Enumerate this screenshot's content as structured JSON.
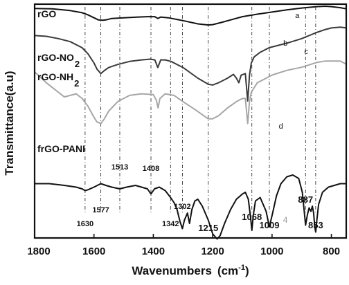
{
  "chart_data": {
    "type": "line",
    "xlabel": "Wavenumbers",
    "xlabel_unit": "(cm",
    "xlabel_unit_sup": "-1",
    "xlabel_unit_close": ")",
    "ylabel": "Transmittance(a.u)",
    "xlim": [
      1800,
      750
    ],
    "x_reversed": true,
    "x_ticks": [
      1800,
      1600,
      1400,
      1200,
      1000,
      800
    ],
    "y_ticks_shown": false,
    "grid": false,
    "legend": "none",
    "series": [
      {
        "name": "rGO",
        "curve_letter": "a",
        "color": "#111111",
        "x": [
          1800,
          1740,
          1680,
          1640,
          1620,
          1600,
          1585,
          1570,
          1560,
          1540,
          1500,
          1450,
          1420,
          1395,
          1385,
          1375,
          1350,
          1300,
          1250,
          1215,
          1200,
          1170,
          1140,
          1100,
          1050,
          1000,
          950,
          900,
          850,
          820,
          800,
          770,
          750
        ],
        "y": [
          0.96,
          0.955,
          0.93,
          0.9,
          0.87,
          0.83,
          0.8,
          0.795,
          0.8,
          0.82,
          0.83,
          0.84,
          0.845,
          0.845,
          0.82,
          0.84,
          0.83,
          0.79,
          0.745,
          0.73,
          0.735,
          0.765,
          0.8,
          0.845,
          0.88,
          0.91,
          0.94,
          0.965,
          0.985,
          0.99,
          0.985,
          0.97,
          0.955
        ]
      },
      {
        "name": "rGO-NO",
        "name_subscript": "2",
        "curve_letter": "b",
        "color": "#3a3a3a",
        "x": [
          1800,
          1760,
          1720,
          1680,
          1640,
          1620,
          1600,
          1590,
          1577,
          1565,
          1550,
          1520,
          1480,
          1440,
          1410,
          1395,
          1385,
          1375,
          1360,
          1340,
          1300,
          1250,
          1215,
          1200,
          1180,
          1150,
          1130,
          1120,
          1112,
          1104,
          1090,
          1082,
          1076,
          1070,
          1060,
          1040,
          1010,
          1000,
          950,
          900,
          850,
          820,
          800,
          770,
          750
        ],
        "y": [
          0.88,
          0.875,
          0.86,
          0.84,
          0.8,
          0.76,
          0.7,
          0.66,
          0.63,
          0.65,
          0.67,
          0.69,
          0.71,
          0.72,
          0.725,
          0.72,
          0.67,
          0.72,
          0.72,
          0.71,
          0.67,
          0.6,
          0.56,
          0.555,
          0.57,
          0.6,
          0.625,
          0.6,
          0.57,
          0.62,
          0.63,
          0.45,
          0.62,
          0.7,
          0.74,
          0.77,
          0.8,
          0.805,
          0.83,
          0.86,
          0.9,
          0.92,
          0.93,
          0.935,
          0.93
        ]
      },
      {
        "name": "rGO-NH",
        "name_subscript": "2",
        "curve_letter": "c",
        "color": "#a6a6a6",
        "x": [
          1800,
          1760,
          1720,
          1700,
          1680,
          1660,
          1640,
          1620,
          1600,
          1590,
          1577,
          1565,
          1550,
          1520,
          1480,
          1440,
          1400,
          1390,
          1384,
          1378,
          1360,
          1330,
          1300,
          1260,
          1230,
          1215,
          1200,
          1180,
          1150,
          1120,
          1100,
          1090,
          1082,
          1076,
          1070,
          1050,
          1020,
          1000,
          950,
          900,
          850,
          820,
          800,
          770,
          750
        ],
        "y": [
          0.77,
          0.7,
          0.64,
          0.61,
          0.62,
          0.63,
          0.6,
          0.55,
          0.48,
          0.45,
          0.44,
          0.47,
          0.52,
          0.58,
          0.62,
          0.63,
          0.625,
          0.59,
          0.54,
          0.6,
          0.63,
          0.62,
          0.58,
          0.53,
          0.49,
          0.47,
          0.47,
          0.49,
          0.54,
          0.58,
          0.6,
          0.6,
          0.44,
          0.58,
          0.64,
          0.7,
          0.73,
          0.75,
          0.78,
          0.8,
          0.83,
          0.84,
          0.84,
          0.84,
          0.82
        ]
      },
      {
        "name": "frGO-PANI",
        "curve_letter": "d",
        "color": "#111111",
        "x": [
          1800,
          1750,
          1700,
          1660,
          1640,
          1630,
          1620,
          1600,
          1577,
          1560,
          1540,
          1513,
          1490,
          1460,
          1440,
          1420,
          1408,
          1396,
          1380,
          1360,
          1342,
          1330,
          1320,
          1310,
          1302,
          1295,
          1285,
          1278,
          1270,
          1260,
          1250,
          1235,
          1215,
          1200,
          1185,
          1175,
          1160,
          1140,
          1120,
          1100,
          1090,
          1080,
          1072,
          1068,
          1063,
          1056,
          1040,
          1020,
          1009,
          998,
          985,
          970,
          950,
          930,
          910,
          898,
          892,
          887,
          881,
          875,
          869,
          864,
          860,
          856,
          853,
          849,
          843,
          830,
          810,
          790,
          770,
          750
        ],
        "y": [
          0.45,
          0.45,
          0.44,
          0.43,
          0.42,
          0.41,
          0.415,
          0.43,
          0.45,
          0.44,
          0.43,
          0.42,
          0.43,
          0.44,
          0.43,
          0.42,
          0.39,
          0.42,
          0.43,
          0.41,
          0.37,
          0.34,
          0.3,
          0.23,
          0.19,
          0.24,
          0.28,
          0.22,
          0.3,
          0.35,
          0.36,
          0.32,
          0.24,
          0.16,
          0.13,
          0.15,
          0.22,
          0.3,
          0.36,
          0.39,
          0.4,
          0.36,
          0.25,
          0.18,
          0.27,
          0.35,
          0.37,
          0.29,
          0.2,
          0.28,
          0.38,
          0.45,
          0.49,
          0.5,
          0.48,
          0.4,
          0.3,
          0.21,
          0.27,
          0.31,
          0.29,
          0.32,
          0.28,
          0.2,
          0.17,
          0.24,
          0.33,
          0.4,
          0.43,
          0.44,
          0.45,
          0.45
        ]
      }
    ],
    "reference_lines": [
      {
        "x": 1630,
        "label": "1630"
      },
      {
        "x": 1577,
        "label": "1577"
      },
      {
        "x": 1513,
        "label": "1513"
      },
      {
        "x": 1408,
        "label": "1408"
      },
      {
        "x": 1342,
        "label": "1342"
      },
      {
        "x": 1302,
        "label": "1302"
      },
      {
        "x": 1215,
        "label": "1215"
      },
      {
        "x": 1068,
        "label": "1068"
      },
      {
        "x": 1009,
        "label": "1009"
      },
      {
        "x": 887,
        "label": "887"
      },
      {
        "x": 853,
        "label": "853"
      }
    ],
    "annotations": [
      {
        "text": "4",
        "x": 955
      }
    ]
  }
}
